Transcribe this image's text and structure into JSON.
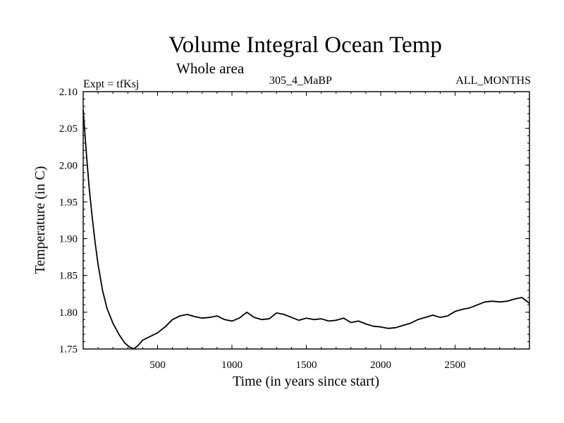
{
  "chart_data": {
    "type": "line",
    "title": "Volume Integral Ocean Temp",
    "subtitle": "Whole area",
    "expt_label": "Expt = tfKsj",
    "period_label": "305_4_MaBP",
    "months_label": "ALL_MONTHS",
    "xlabel": "Time (in years since start)",
    "ylabel": "Temperature (in C)",
    "xlim": [
      0,
      3000
    ],
    "ylim": [
      1.75,
      2.1
    ],
    "x_ticks": [
      "500",
      "1000",
      "1500",
      "2000",
      "2500"
    ],
    "y_ticks": [
      "1.75",
      "1.80",
      "1.85",
      "1.90",
      "1.95",
      "2.00",
      "2.05",
      "2.10"
    ],
    "series": [
      {
        "name": "Volume integral ocean temperature",
        "x": [
          0,
          20,
          40,
          60,
          80,
          100,
          130,
          160,
          200,
          240,
          280,
          310,
          340,
          370,
          400,
          450,
          500,
          550,
          600,
          650,
          700,
          750,
          800,
          850,
          900,
          950,
          1000,
          1050,
          1100,
          1150,
          1200,
          1250,
          1300,
          1350,
          1400,
          1450,
          1500,
          1550,
          1600,
          1650,
          1700,
          1750,
          1800,
          1850,
          1900,
          1950,
          2000,
          2050,
          2100,
          2150,
          2200,
          2250,
          2300,
          2350,
          2400,
          2450,
          2500,
          2550,
          2600,
          2650,
          2700,
          2750,
          2800,
          2850,
          2900,
          2950,
          3000
        ],
        "values": [
          2.075,
          2.02,
          1.97,
          1.93,
          1.895,
          1.865,
          1.83,
          1.805,
          1.785,
          1.77,
          1.758,
          1.753,
          1.75,
          1.755,
          1.762,
          1.767,
          1.772,
          1.78,
          1.79,
          1.795,
          1.797,
          1.794,
          1.792,
          1.793,
          1.795,
          1.79,
          1.788,
          1.792,
          1.8,
          1.793,
          1.79,
          1.791,
          1.799,
          1.797,
          1.793,
          1.789,
          1.792,
          1.79,
          1.791,
          1.788,
          1.789,
          1.792,
          1.786,
          1.788,
          1.784,
          1.781,
          1.78,
          1.778,
          1.779,
          1.782,
          1.785,
          1.79,
          1.793,
          1.796,
          1.793,
          1.795,
          1.801,
          1.804,
          1.806,
          1.81,
          1.814,
          1.815,
          1.814,
          1.815,
          1.818,
          1.82,
          1.812
        ]
      }
    ]
  }
}
